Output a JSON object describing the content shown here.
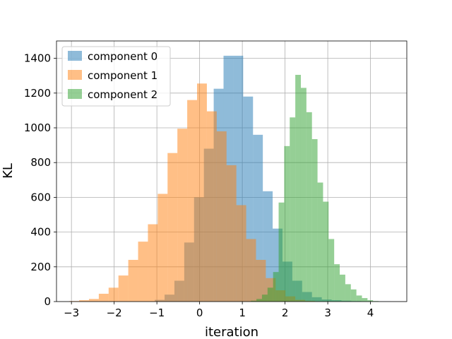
{
  "chart_data": {
    "type": "histogram",
    "xlabel": "iteration",
    "ylabel": "KL",
    "xlim": [
      -3.35,
      4.85
    ],
    "ylim": [
      0,
      1500
    ],
    "xticks": [
      -3,
      -2,
      -1,
      0,
      1,
      2,
      3,
      4
    ],
    "xtick_labels": [
      "−3",
      "−2",
      "−1",
      "0",
      "1",
      "2",
      "3",
      "4"
    ],
    "yticks": [
      0,
      200,
      400,
      600,
      800,
      1000,
      1200,
      1400
    ],
    "ytick_labels": [
      "0",
      "200",
      "400",
      "600",
      "800",
      "1000",
      "1200",
      "1400"
    ],
    "grid": true,
    "legend_position": "top-left",
    "bar_alpha": 0.5,
    "series": [
      {
        "name": "component 0",
        "color": "#1f77b4",
        "bins": [
          {
            "x0": -1.05,
            "x1": -0.82,
            "count": 10
          },
          {
            "x0": -0.82,
            "x1": -0.59,
            "count": 40
          },
          {
            "x0": -0.59,
            "x1": -0.36,
            "count": 120
          },
          {
            "x0": -0.36,
            "x1": -0.13,
            "count": 340
          },
          {
            "x0": -0.13,
            "x1": 0.1,
            "count": 600
          },
          {
            "x0": 0.1,
            "x1": 0.33,
            "count": 880
          },
          {
            "x0": 0.33,
            "x1": 0.56,
            "count": 1225
          },
          {
            "x0": 0.56,
            "x1": 0.79,
            "count": 1415
          },
          {
            "x0": 0.79,
            "x1": 1.02,
            "count": 1415
          },
          {
            "x0": 1.02,
            "x1": 1.25,
            "count": 1180
          },
          {
            "x0": 1.25,
            "x1": 1.48,
            "count": 960
          },
          {
            "x0": 1.48,
            "x1": 1.71,
            "count": 635
          },
          {
            "x0": 1.71,
            "x1": 1.94,
            "count": 420
          },
          {
            "x0": 1.94,
            "x1": 2.17,
            "count": 230
          },
          {
            "x0": 2.17,
            "x1": 2.4,
            "count": 120
          },
          {
            "x0": 2.4,
            "x1": 2.63,
            "count": 55
          },
          {
            "x0": 2.63,
            "x1": 2.86,
            "count": 25
          },
          {
            "x0": 2.86,
            "x1": 3.09,
            "count": 12
          },
          {
            "x0": 3.09,
            "x1": 3.32,
            "count": 8
          },
          {
            "x0": 3.32,
            "x1": 3.55,
            "count": 5
          },
          {
            "x0": 3.55,
            "x1": 3.78,
            "count": 3
          },
          {
            "x0": 3.78,
            "x1": 4.01,
            "count": 2
          },
          {
            "x0": 4.01,
            "x1": 4.24,
            "count": 1
          },
          {
            "x0": 4.24,
            "x1": 4.47,
            "count": 1
          }
        ]
      },
      {
        "name": "component 1",
        "color": "#ff7f0e",
        "bins": [
          {
            "x0": -3.05,
            "x1": -2.82,
            "count": 3
          },
          {
            "x0": -2.82,
            "x1": -2.59,
            "count": 8
          },
          {
            "x0": -2.59,
            "x1": -2.36,
            "count": 15
          },
          {
            "x0": -2.36,
            "x1": -2.13,
            "count": 45
          },
          {
            "x0": -2.13,
            "x1": -1.9,
            "count": 80
          },
          {
            "x0": -1.9,
            "x1": -1.67,
            "count": 150
          },
          {
            "x0": -1.67,
            "x1": -1.44,
            "count": 240
          },
          {
            "x0": -1.44,
            "x1": -1.21,
            "count": 345
          },
          {
            "x0": -1.21,
            "x1": -0.98,
            "count": 445
          },
          {
            "x0": -0.98,
            "x1": -0.75,
            "count": 620
          },
          {
            "x0": -0.75,
            "x1": -0.52,
            "count": 855
          },
          {
            "x0": -0.52,
            "x1": -0.29,
            "count": 995
          },
          {
            "x0": -0.29,
            "x1": -0.06,
            "count": 1160
          },
          {
            "x0": -0.06,
            "x1": 0.17,
            "count": 1255
          },
          {
            "x0": 0.17,
            "x1": 0.4,
            "count": 1095
          },
          {
            "x0": 0.4,
            "x1": 0.63,
            "count": 980
          },
          {
            "x0": 0.63,
            "x1": 0.86,
            "count": 785
          },
          {
            "x0": 0.86,
            "x1": 1.09,
            "count": 555
          },
          {
            "x0": 1.09,
            "x1": 1.32,
            "count": 360
          },
          {
            "x0": 1.32,
            "x1": 1.55,
            "count": 240
          },
          {
            "x0": 1.55,
            "x1": 1.78,
            "count": 135
          },
          {
            "x0": 1.78,
            "x1": 2.01,
            "count": 65
          },
          {
            "x0": 2.01,
            "x1": 2.24,
            "count": 30
          },
          {
            "x0": 2.24,
            "x1": 2.47,
            "count": 10
          },
          {
            "x0": 2.47,
            "x1": 2.7,
            "count": 4
          }
        ]
      },
      {
        "name": "component 2",
        "color": "#2ca02c",
        "bins": [
          {
            "x0": 1.2,
            "x1": 1.33,
            "count": 5
          },
          {
            "x0": 1.33,
            "x1": 1.46,
            "count": 15
          },
          {
            "x0": 1.46,
            "x1": 1.59,
            "count": 40
          },
          {
            "x0": 1.59,
            "x1": 1.72,
            "count": 80
          },
          {
            "x0": 1.72,
            "x1": 1.85,
            "count": 170
          },
          {
            "x0": 1.85,
            "x1": 1.98,
            "count": 570
          },
          {
            "x0": 1.98,
            "x1": 2.11,
            "count": 895
          },
          {
            "x0": 2.11,
            "x1": 2.24,
            "count": 1060
          },
          {
            "x0": 2.24,
            "x1": 2.37,
            "count": 1305
          },
          {
            "x0": 2.37,
            "x1": 2.5,
            "count": 1230
          },
          {
            "x0": 2.5,
            "x1": 2.63,
            "count": 1090
          },
          {
            "x0": 2.63,
            "x1": 2.76,
            "count": 935
          },
          {
            "x0": 2.76,
            "x1": 2.89,
            "count": 685
          },
          {
            "x0": 2.89,
            "x1": 3.02,
            "count": 575
          },
          {
            "x0": 3.02,
            "x1": 3.15,
            "count": 360
          },
          {
            "x0": 3.15,
            "x1": 3.28,
            "count": 215
          },
          {
            "x0": 3.28,
            "x1": 3.41,
            "count": 155
          },
          {
            "x0": 3.41,
            "x1": 3.54,
            "count": 100
          },
          {
            "x0": 3.54,
            "x1": 3.67,
            "count": 70
          },
          {
            "x0": 3.67,
            "x1": 3.8,
            "count": 35
          },
          {
            "x0": 3.8,
            "x1": 3.93,
            "count": 20
          },
          {
            "x0": 3.93,
            "x1": 4.06,
            "count": 8
          },
          {
            "x0": 4.06,
            "x1": 4.19,
            "count": 3
          }
        ]
      }
    ]
  }
}
